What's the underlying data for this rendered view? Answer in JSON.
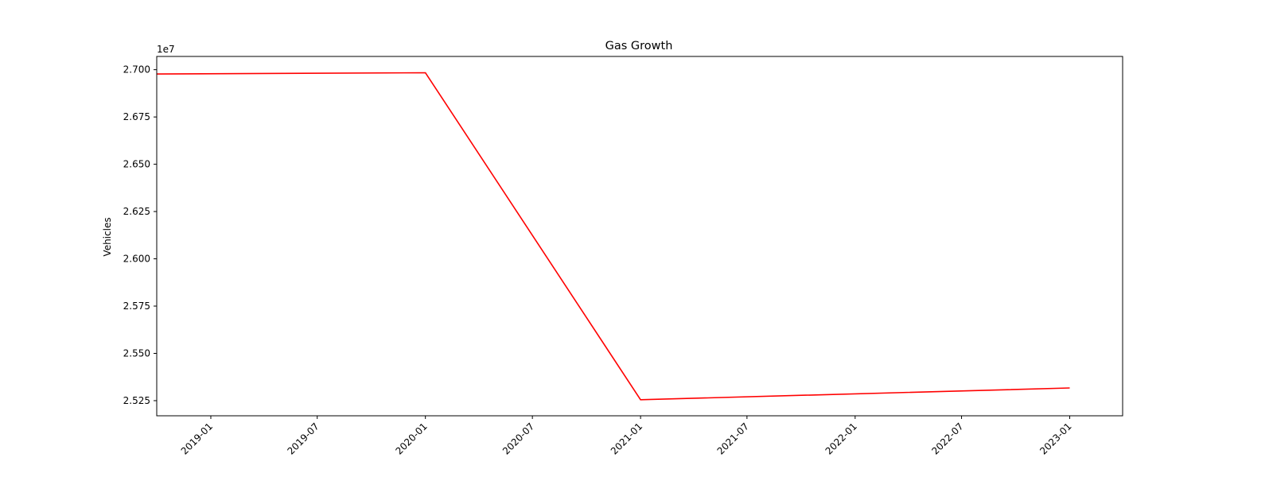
{
  "chart_data": {
    "type": "line",
    "title": "Gas Growth",
    "xlabel": "",
    "ylabel": "Vehicles",
    "y_offset_label": "1e7",
    "grid": false,
    "x_type": "date",
    "xlim": [
      "2018-10-01",
      "2023-04-01"
    ],
    "ylim": [
      25170000,
      27070000
    ],
    "x_ticks": [
      "2019-01",
      "2019-07",
      "2020-01",
      "2020-07",
      "2021-01",
      "2021-07",
      "2022-01",
      "2022-07",
      "2023-01"
    ],
    "y_ticks": [
      2.525,
      2.55,
      2.575,
      2.6,
      2.625,
      2.65,
      2.675,
      2.7
    ],
    "series": [
      {
        "color": "#ff0000",
        "x": [
          "2018-10-01",
          "2020-01-01",
          "2021-01-01",
          "2023-01-01"
        ],
        "y": [
          26977000,
          26984000,
          25255000,
          25317000
        ]
      }
    ]
  }
}
